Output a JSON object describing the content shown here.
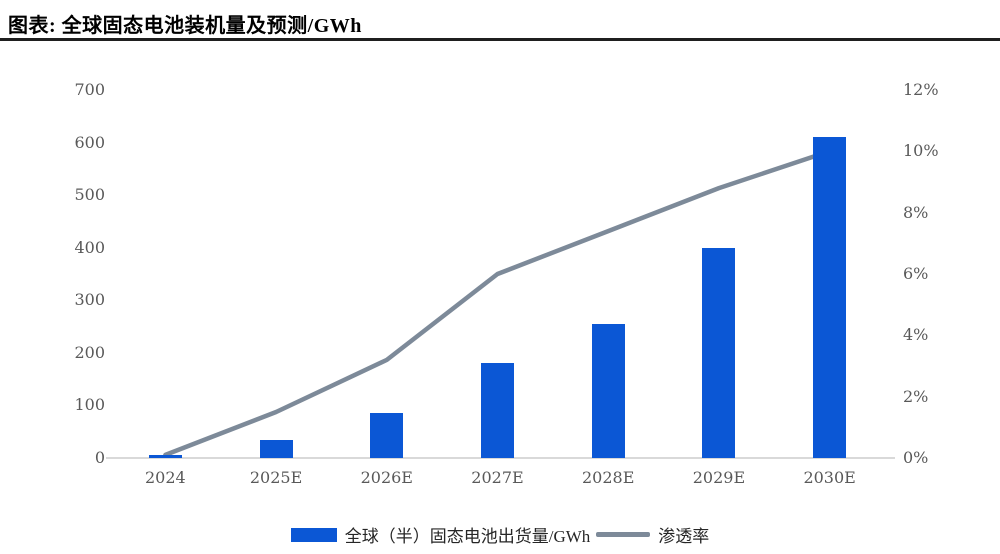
{
  "header": {
    "title": "图表: 全球固态电池装机量及预测/GWh"
  },
  "chart_data": {
    "type": "bar",
    "title": "全球固态电池装机量及预测/GWh",
    "categories": [
      "2024",
      "2025E",
      "2026E",
      "2027E",
      "2028E",
      "2029E",
      "2030E"
    ],
    "series": [
      {
        "name": "全球（半）固态电池出货量/GWh",
        "type": "bar",
        "axis": "left",
        "unit": "GWh",
        "color": "#0b57d5",
        "values": [
          5,
          35,
          85,
          180,
          255,
          400,
          610
        ]
      },
      {
        "name": "渗透率",
        "type": "line",
        "axis": "right",
        "unit": "%",
        "color": "#7d8a99",
        "values": [
          0.1,
          1.5,
          3.2,
          6.0,
          7.4,
          8.8,
          10.0
        ]
      }
    ],
    "left_axis": {
      "min": 0,
      "max": 700,
      "ticks": [
        0,
        100,
        200,
        300,
        400,
        500,
        600,
        700
      ]
    },
    "right_axis": {
      "min": 0,
      "max": 12,
      "ticks": [
        "0%",
        "2%",
        "4%",
        "6%",
        "8%",
        "10%",
        "12%"
      ]
    },
    "grid": false,
    "legend_position": "bottom"
  },
  "colors": {
    "bar": "#0b57d5",
    "line": "#7d8a99",
    "axis_text": "#595959",
    "baseline": "#d9d9d9",
    "title_text": "#000000",
    "title_rule": "#1f1f1f"
  }
}
